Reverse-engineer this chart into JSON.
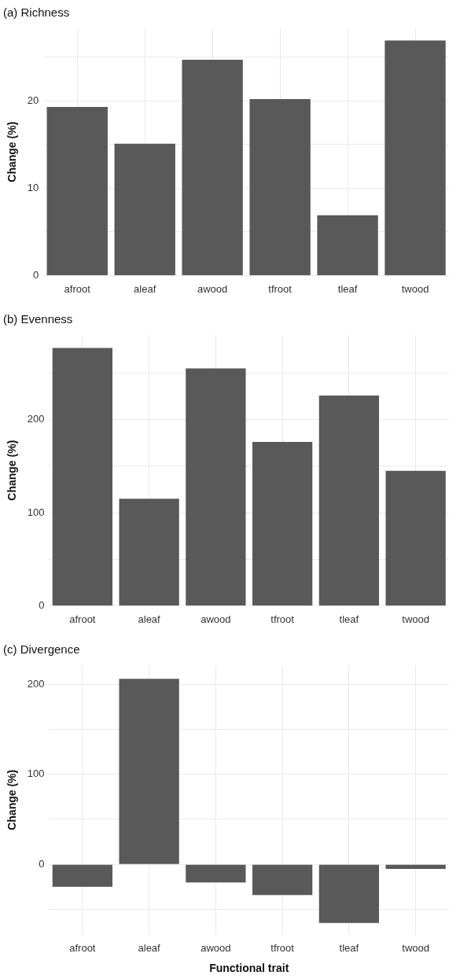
{
  "chart_data": [
    {
      "type": "bar",
      "title": "(a) Richness",
      "ylabel": "Change (%)",
      "categories": [
        "afroot",
        "aleaf",
        "awood",
        "tfroot",
        "tleaf",
        "twood"
      ],
      "values": [
        19.3,
        15.1,
        24.7,
        20.2,
        6.9,
        26.9
      ],
      "color": "#595959",
      "ylim": [
        0,
        28.3
      ],
      "yticks": [
        0,
        {
          "value": 5,
          "label": null
        },
        10,
        {
          "value": 15,
          "label": null
        },
        20,
        {
          "value": 25,
          "label": null
        }
      ],
      "grid": true
    },
    {
      "type": "bar",
      "title": "(b) Evenness",
      "ylabel": "Change (%)",
      "categories": [
        "afroot",
        "aleaf",
        "awood",
        "tfroot",
        "tleaf",
        "twood"
      ],
      "values": [
        277,
        115,
        255,
        176,
        226,
        145
      ],
      "color": "#595959",
      "ylim": [
        0,
        291
      ],
      "yticks": [
        0,
        {
          "value": 50,
          "label": null
        },
        100,
        {
          "value": 150,
          "label": null
        },
        200,
        {
          "value": 250,
          "label": null
        }
      ],
      "grid": true
    },
    {
      "type": "bar",
      "title": "(c) Divergence",
      "ylabel": "Change (%)",
      "xlabel": "Functional trait",
      "categories": [
        "afroot",
        "aleaf",
        "awood",
        "tfroot",
        "tleaf",
        "twood"
      ],
      "values": [
        -25,
        206,
        -20,
        -34,
        -65,
        -5
      ],
      "color": "#595959",
      "ylim": [
        -78,
        221
      ],
      "yticks": [
        {
          "value": -50,
          "label": null
        },
        0,
        {
          "value": 50,
          "label": null
        },
        100,
        {
          "value": 150,
          "label": null
        },
        200
      ],
      "grid": true
    }
  ]
}
